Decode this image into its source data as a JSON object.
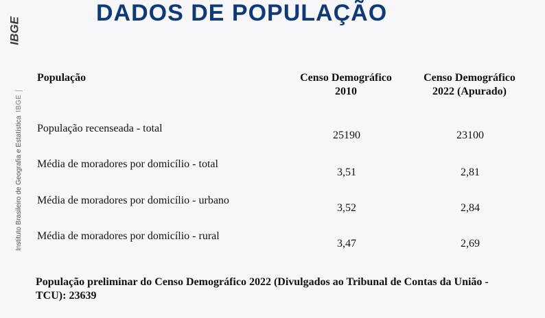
{
  "title": "DADOS DE POPULAÇÃO",
  "sidebar": {
    "logo_text": "IBGE",
    "institution": "Instituto Brasileiro de Geografia e Estatística",
    "abbr": "IBGE"
  },
  "table": {
    "header": {
      "label": "População",
      "col_2010": "Censo Demográfico 2010",
      "col_2022": "Censo Demográfico 2022 (Apurado)"
    },
    "rows": [
      {
        "label": "População recenseada - total",
        "v2010": "25190",
        "v2022": "23100"
      },
      {
        "label": "Média de moradores por domicílio - total",
        "v2010": "3,51",
        "v2022": "2,81"
      },
      {
        "label": "Média de moradores por domicílio - urbano",
        "v2010": "3,52",
        "v2022": "2,84"
      },
      {
        "label": "Média de moradores por domicílio - rural",
        "v2010": "3,47",
        "v2022": "2,69"
      }
    ]
  },
  "footnote": "População preliminar do Censo Demográfico 2022 (Divulgados ao Tribunal de Contas da União - TCU): 23639"
}
